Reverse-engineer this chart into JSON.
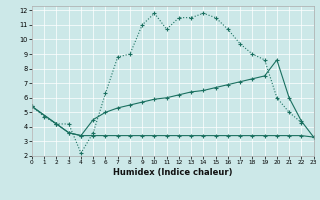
{
  "bg_color": "#cce8e8",
  "line_color": "#1a7060",
  "xlabel": "Humidex (Indice chaleur)",
  "xlim": [
    0,
    23
  ],
  "ylim": [
    2,
    12.3
  ],
  "xticks": [
    0,
    1,
    2,
    3,
    4,
    5,
    6,
    7,
    8,
    9,
    10,
    11,
    12,
    13,
    14,
    15,
    16,
    17,
    18,
    19,
    20,
    21,
    22,
    23
  ],
  "yticks": [
    2,
    3,
    4,
    5,
    6,
    7,
    8,
    9,
    10,
    11,
    12
  ],
  "s1_x": [
    0,
    1,
    2,
    3,
    4,
    5,
    6,
    7,
    8,
    9,
    10,
    11,
    12,
    13,
    14,
    15,
    16,
    17,
    18,
    19,
    20,
    21,
    22
  ],
  "s1_y": [
    5.4,
    4.7,
    4.2,
    4.2,
    2.2,
    3.6,
    6.3,
    8.8,
    9.0,
    11.0,
    11.8,
    10.7,
    11.5,
    11.5,
    11.8,
    11.5,
    10.7,
    9.7,
    9.0,
    8.6,
    6.0,
    5.0,
    4.3
  ],
  "s2_x": [
    0,
    2,
    3,
    4,
    5,
    6,
    7,
    8,
    9,
    10,
    11,
    12,
    13,
    14,
    15,
    16,
    17,
    18,
    19,
    20,
    21,
    22,
    23
  ],
  "s2_y": [
    5.4,
    4.2,
    3.6,
    3.4,
    3.4,
    3.4,
    3.4,
    3.4,
    3.4,
    3.4,
    3.4,
    3.4,
    3.4,
    3.4,
    3.4,
    3.4,
    3.4,
    3.4,
    3.4,
    3.4,
    3.4,
    3.4,
    3.3
  ],
  "s3_x": [
    0,
    2,
    3,
    4,
    5,
    6,
    7,
    8,
    9,
    10,
    11,
    12,
    13,
    14,
    15,
    16,
    17,
    18,
    19,
    20,
    21,
    22,
    23
  ],
  "s3_y": [
    5.4,
    4.2,
    3.6,
    3.4,
    4.5,
    5.0,
    5.3,
    5.5,
    5.7,
    5.9,
    6.0,
    6.2,
    6.4,
    6.5,
    6.7,
    6.9,
    7.1,
    7.3,
    7.5,
    8.6,
    6.0,
    4.4,
    3.3
  ]
}
